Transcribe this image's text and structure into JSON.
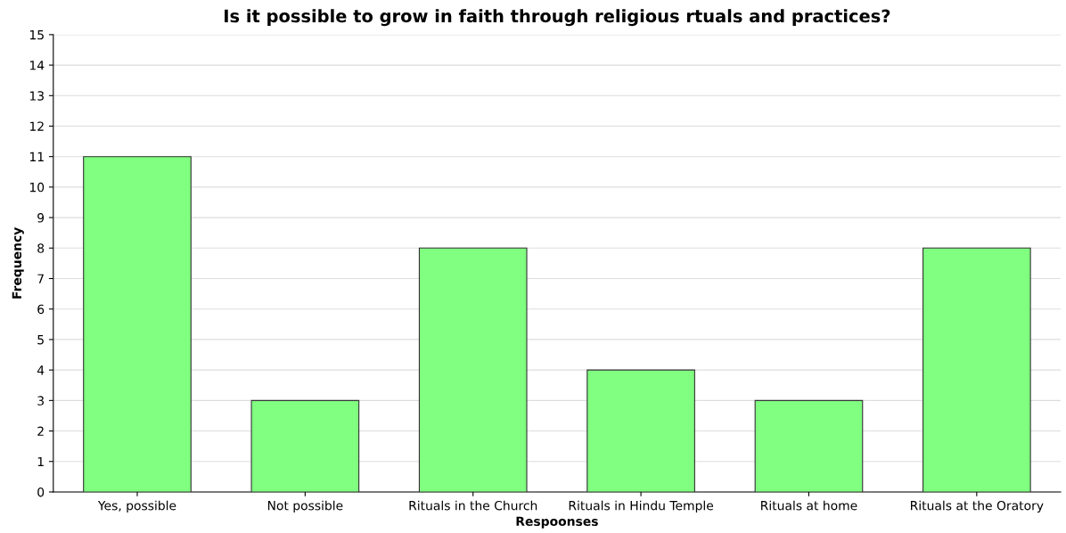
{
  "chart_data": {
    "type": "bar",
    "title": "Is it possible to grow in faith through religious rtuals and practices?",
    "xlabel": "Respoonses",
    "ylabel": "Frequency",
    "categories": [
      "Yes, possible",
      "Not possible",
      "Rituals in the Church",
      "Rituals in Hindu Temple",
      "Rituals at home",
      "Rituals at the Oratory"
    ],
    "values": [
      11,
      3,
      8,
      4,
      3,
      8
    ],
    "color": "#80ff80",
    "ylim": [
      0,
      15
    ],
    "yticks": [
      0,
      1,
      2,
      3,
      4,
      5,
      6,
      7,
      8,
      9,
      10,
      11,
      12,
      13,
      14,
      15
    ],
    "grid": "y"
  }
}
